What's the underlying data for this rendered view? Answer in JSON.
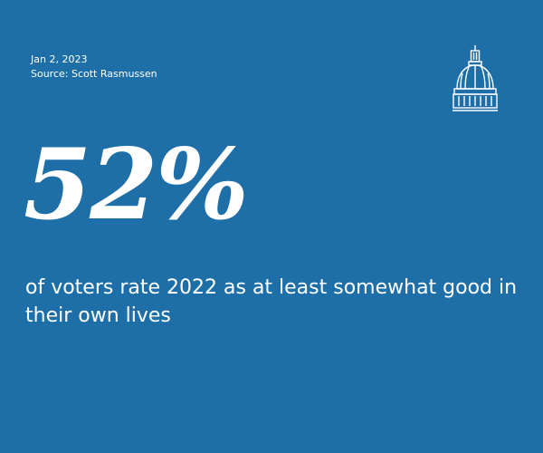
{
  "meta": {
    "date": "Jan 2, 2023",
    "source": "Source: Scott Rasmussen"
  },
  "headline": {
    "value": "52%",
    "caption": "of voters rate 2022 as at least somewhat good in their own lives"
  },
  "logo": {
    "icon": "capitol-dome-icon"
  },
  "colors": {
    "background": "#1e6fa8",
    "text": "#ffffff"
  }
}
